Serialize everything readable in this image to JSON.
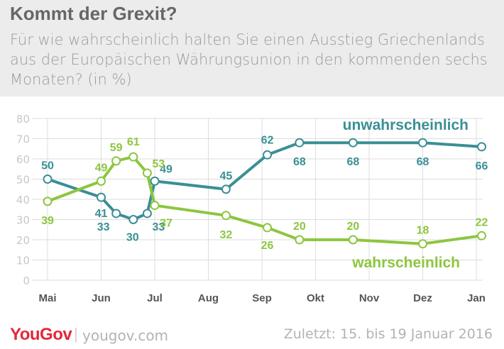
{
  "header": {
    "title": "Kommt der Grexit?",
    "subtitle": "Für wie wahrscheinlich halten Sie einen Ausstieg Griechenlands aus der Europäischen Währungsunion in den kommenden sechs Monaten? (in %)"
  },
  "footer": {
    "logo_you": "You",
    "logo_gov": "Gov",
    "separator": "|",
    "site": "yougov.com",
    "updated": "Zuletzt: 15. bis 19 Januar 2016"
  },
  "colors": {
    "unwahrscheinlich": "#3a8f95",
    "wahrscheinlich": "#8cc63f",
    "grid": "#dddddd",
    "axis_text": "#c8c8c8",
    "month_text": "#555555"
  },
  "chart_data": {
    "type": "line",
    "title": "",
    "xlabel": "",
    "ylabel": "",
    "ylim": [
      0,
      80
    ],
    "yticks": [
      0,
      10,
      20,
      30,
      40,
      50,
      60,
      70,
      80
    ],
    "grid": true,
    "legend": "inline labels",
    "x_months": [
      "Mai",
      "Jun",
      "Jul",
      "Aug",
      "Sep",
      "Okt",
      "Nov",
      "Dez",
      "Jan"
    ],
    "series": [
      {
        "name": "unwahrscheinlich",
        "color": "#3a8f95",
        "points": [
          {
            "x": 0.0,
            "y": 50
          },
          {
            "x": 1.0,
            "y": 41
          },
          {
            "x": 1.28,
            "y": 33
          },
          {
            "x": 1.6,
            "y": 30
          },
          {
            "x": 1.86,
            "y": 33
          },
          {
            "x": 2.0,
            "y": 49
          },
          {
            "x": 3.33,
            "y": 45
          },
          {
            "x": 4.1,
            "y": 62
          },
          {
            "x": 4.7,
            "y": 68
          },
          {
            "x": 5.7,
            "y": 68
          },
          {
            "x": 7.0,
            "y": 68
          },
          {
            "x": 8.1,
            "y": 66
          }
        ]
      },
      {
        "name": "wahrscheinlich",
        "color": "#8cc63f",
        "points": [
          {
            "x": 0.0,
            "y": 39
          },
          {
            "x": 1.0,
            "y": 49
          },
          {
            "x": 1.28,
            "y": 59
          },
          {
            "x": 1.6,
            "y": 61
          },
          {
            "x": 1.86,
            "y": 53
          },
          {
            "x": 2.0,
            "y": 37
          },
          {
            "x": 3.33,
            "y": 32
          },
          {
            "x": 4.1,
            "y": 26
          },
          {
            "x": 4.7,
            "y": 20
          },
          {
            "x": 5.7,
            "y": 20
          },
          {
            "x": 7.0,
            "y": 18
          },
          {
            "x": 8.1,
            "y": 22
          }
        ]
      }
    ]
  }
}
